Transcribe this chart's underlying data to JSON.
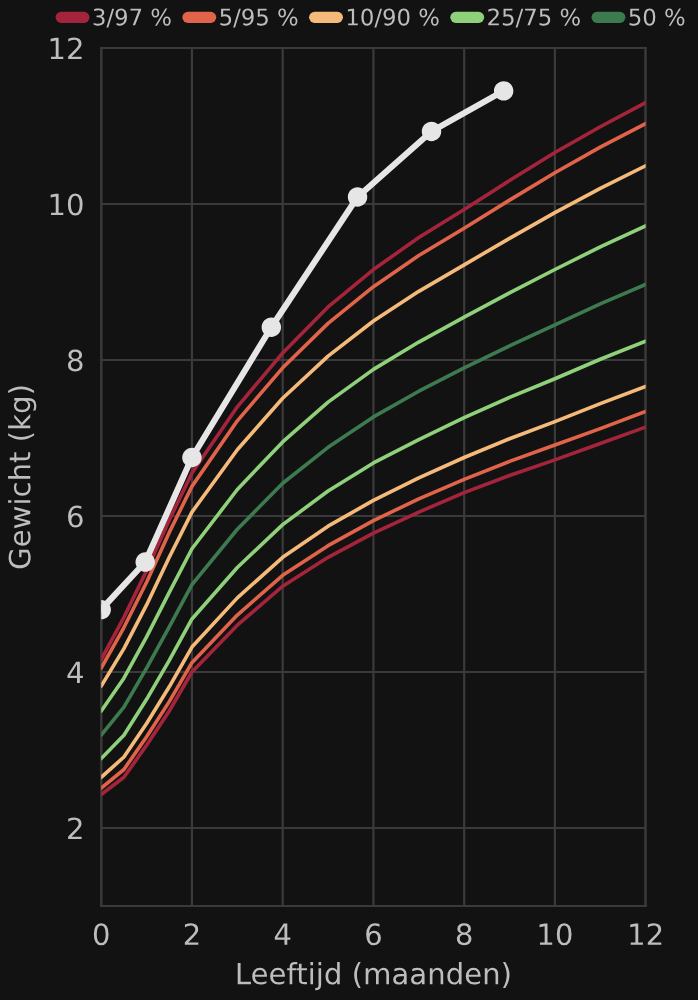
{
  "chart_data": {
    "type": "line",
    "xlabel": "Leeftijd (maanden)",
    "ylabel": "Gewicht (kg)",
    "xlim": [
      0,
      12
    ],
    "ylim": [
      1,
      12
    ],
    "xticks": [
      0,
      2,
      4,
      6,
      8,
      10,
      12
    ],
    "yticks": [
      2,
      4,
      6,
      8,
      10,
      12
    ],
    "grid": true,
    "legend": "top",
    "line_style": "solid",
    "x": [
      0,
      0.5,
      1,
      1.5,
      2,
      3,
      4,
      5,
      6,
      7,
      8,
      9,
      10,
      11,
      12
    ],
    "series": [
      {
        "name": "3/97 %",
        "color": "#a3243b",
        "marker": "none",
        "values": [
          4.16,
          4.7,
          5.3,
          5.95,
          6.55,
          7.4,
          8.09,
          8.68,
          9.16,
          9.57,
          9.93,
          10.3,
          10.66,
          10.99,
          11.3
        ]
      },
      {
        "color": "#a3243b",
        "marker": "none",
        "values": [
          2.43,
          2.65,
          3.06,
          3.5,
          4.0,
          4.6,
          5.1,
          5.47,
          5.78,
          6.05,
          6.3,
          6.52,
          6.72,
          6.93,
          7.14
        ]
      },
      {
        "name": "5/95 %",
        "color": "#e0634a",
        "marker": "none",
        "values": [
          4.05,
          4.57,
          5.15,
          5.79,
          6.38,
          7.22,
          7.9,
          8.47,
          8.94,
          9.34,
          9.69,
          10.05,
          10.4,
          10.73,
          11.03
        ]
      },
      {
        "color": "#e0634a",
        "marker": "none",
        "values": [
          2.51,
          2.75,
          3.17,
          3.62,
          4.12,
          4.73,
          5.24,
          5.62,
          5.94,
          6.22,
          6.47,
          6.7,
          6.91,
          7.12,
          7.34
        ]
      },
      {
        "name": "10/90 %",
        "color": "#f5b97a",
        "marker": "none",
        "values": [
          3.82,
          4.3,
          4.86,
          5.47,
          6.05,
          6.85,
          7.51,
          8.05,
          8.5,
          8.88,
          9.22,
          9.56,
          9.89,
          10.2,
          10.49
        ]
      },
      {
        "color": "#f5b97a",
        "marker": "none",
        "values": [
          2.65,
          2.91,
          3.34,
          3.81,
          4.32,
          4.95,
          5.47,
          5.87,
          6.2,
          6.49,
          6.75,
          6.99,
          7.21,
          7.44,
          7.66
        ]
      },
      {
        "name": "25/75 %",
        "color": "#8fd17a",
        "marker": "none",
        "values": [
          3.5,
          3.92,
          4.45,
          5.02,
          5.58,
          6.34,
          6.95,
          7.46,
          7.88,
          8.23,
          8.55,
          8.86,
          9.16,
          9.45,
          9.72
        ]
      },
      {
        "color": "#8fd17a",
        "marker": "none",
        "values": [
          2.89,
          3.19,
          3.65,
          4.15,
          4.68,
          5.34,
          5.89,
          6.32,
          6.68,
          6.98,
          7.26,
          7.52,
          7.76,
          8.01,
          8.24
        ]
      },
      {
        "name": "50 %",
        "color": "#3d7a50",
        "marker": "none",
        "values": [
          3.19,
          3.55,
          4.05,
          4.58,
          5.12,
          5.83,
          6.42,
          6.88,
          7.27,
          7.6,
          7.9,
          8.18,
          8.45,
          8.72,
          8.97
        ]
      },
      {
        "color": "#e6e6e6",
        "marker": "circle",
        "x": [
          0,
          0.97,
          2,
          3.75,
          5.65,
          7.28,
          8.87
        ],
        "values": [
          4.8,
          5.41,
          6.75,
          8.42,
          10.09,
          10.93,
          11.45
        ]
      }
    ]
  }
}
